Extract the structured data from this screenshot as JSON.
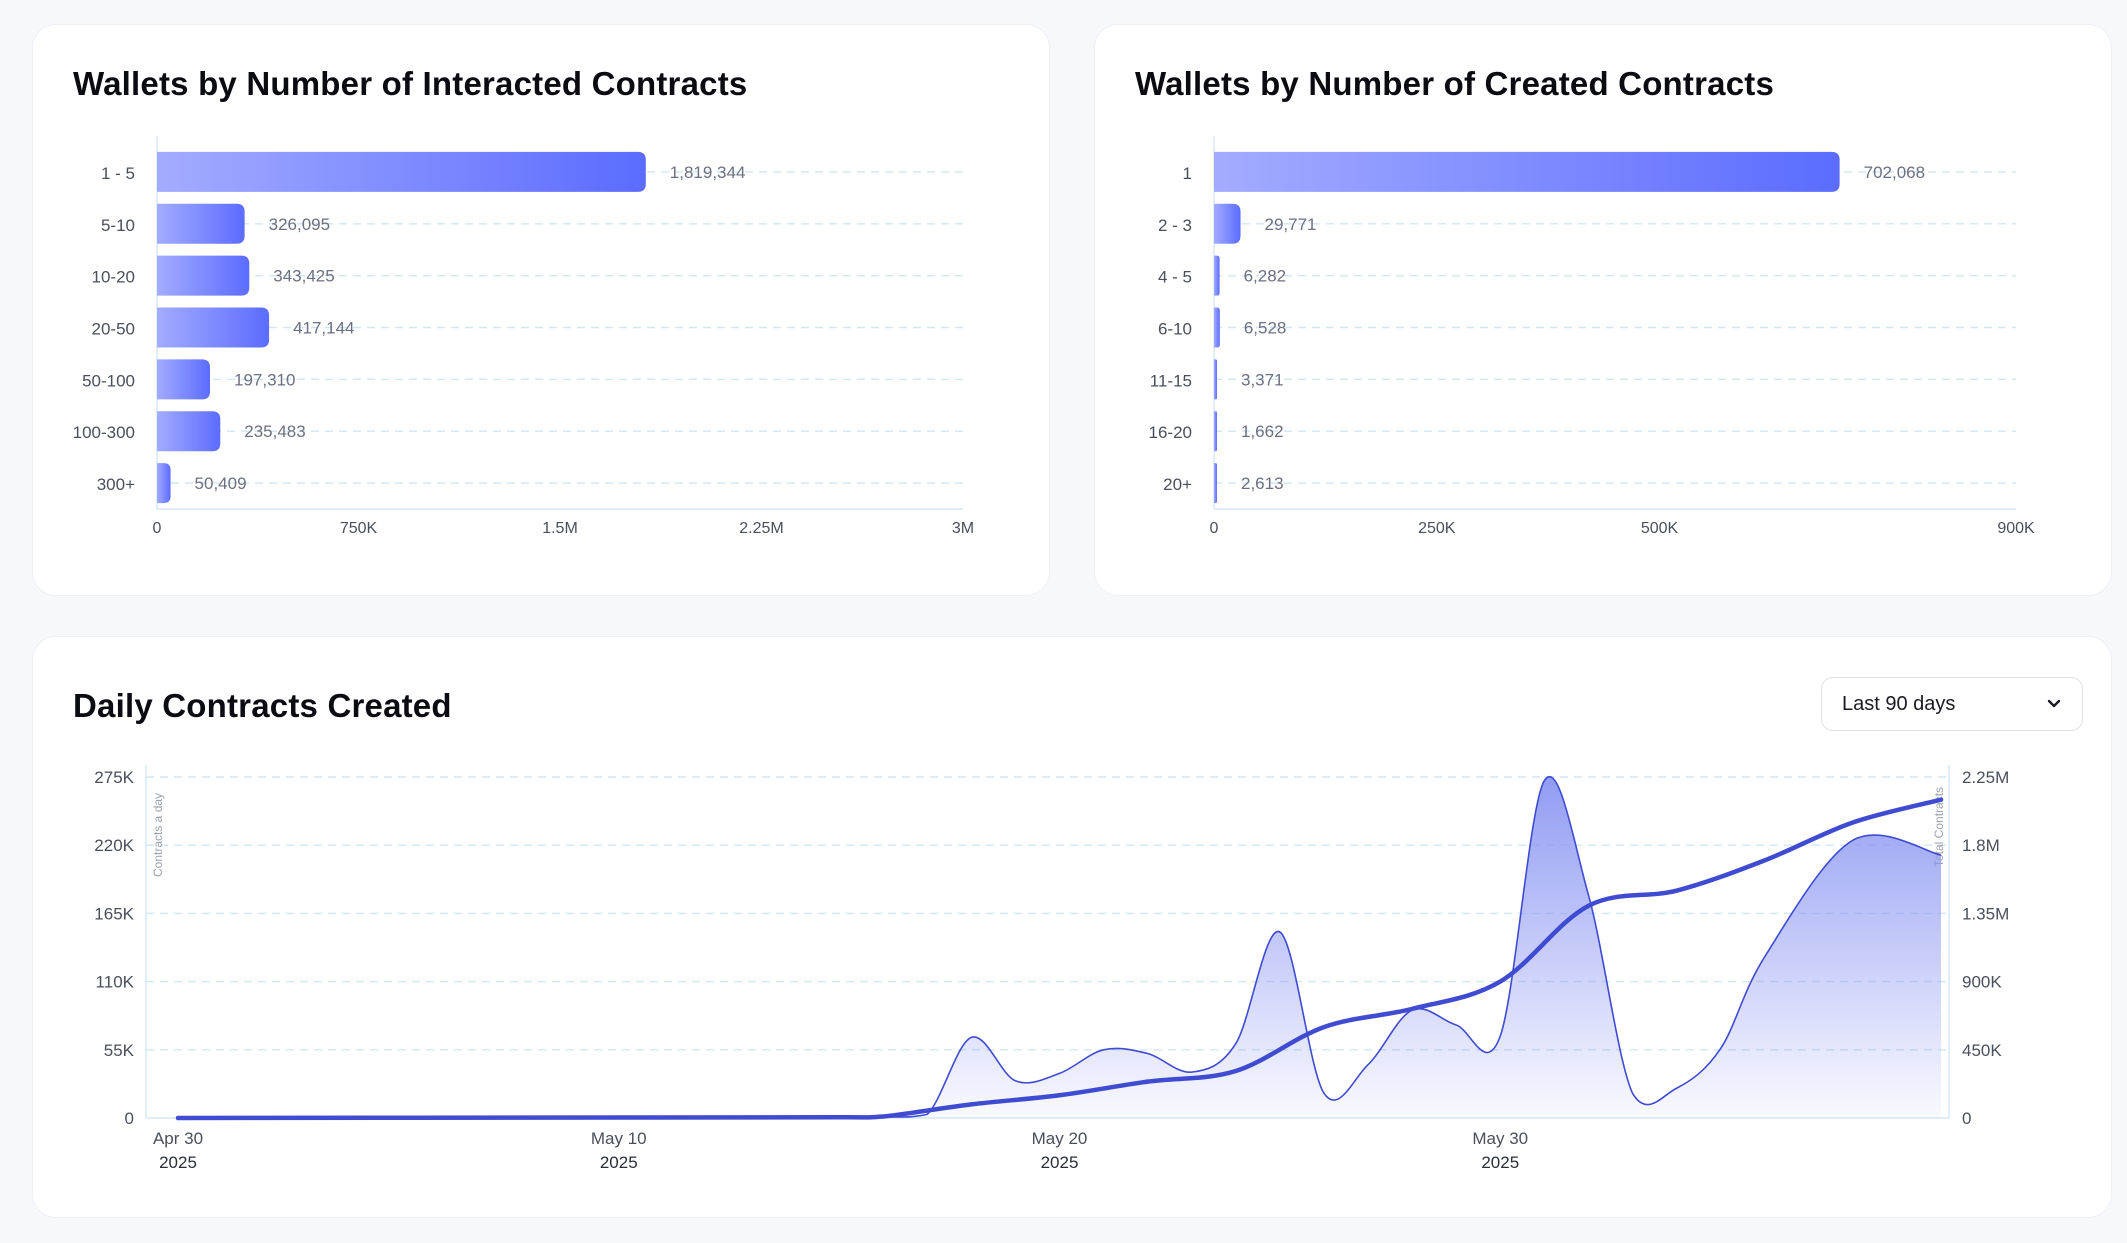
{
  "dashboard": {
    "interacted_title": "Wallets by Number of Interacted Contracts",
    "created_title": "Wallets by Number of Created Contracts",
    "daily_title": "Daily Contracts Created",
    "range_selector": {
      "selected": "Last 90 days",
      "icon": "chevron-down-icon"
    }
  },
  "colors": {
    "bar_start": "#a3acff",
    "bar_end": "#5b6cff",
    "line": "#3f4bd1",
    "area_top": "#8c97f2",
    "grid": "#cfe6f5",
    "axis": "#d6e9f6",
    "tick_text": "#4a4f5c",
    "value_text": "#6b7080"
  },
  "chart_data": [
    {
      "id": "interacted",
      "type": "bar",
      "orientation": "horizontal",
      "title": "Wallets by Number of Interacted Contracts",
      "categories": [
        "1 - 5",
        "5-10",
        "10-20",
        "20-50",
        "50-100",
        "100-300",
        "300+"
      ],
      "values": [
        1819344,
        326095,
        343425,
        417144,
        197310,
        235483,
        50409
      ],
      "value_labels": [
        "1,819,344",
        "326,095",
        "343,425",
        "417,144",
        "197,310",
        "235,483",
        "50,409"
      ],
      "xlim": [
        0,
        3000000
      ],
      "x_ticks": [
        0,
        750000,
        1500000,
        2250000,
        3000000
      ],
      "x_tick_labels": [
        "0",
        "750K",
        "1.5M",
        "2.25M",
        "3M"
      ],
      "grid": true,
      "legend": "none"
    },
    {
      "id": "created",
      "type": "bar",
      "orientation": "horizontal",
      "title": "Wallets by Number of Created Contracts",
      "categories": [
        "1",
        "2 - 3",
        "4 - 5",
        "6-10",
        "11-15",
        "16-20",
        "20+"
      ],
      "values": [
        702068,
        29771,
        6282,
        6528,
        3371,
        1662,
        2613
      ],
      "value_labels": [
        "702,068",
        "29,771",
        "6,282",
        "6,528",
        "3,371",
        "1,662",
        "2,613"
      ],
      "xlim": [
        0,
        900000
      ],
      "x_ticks": [
        0,
        250000,
        500000,
        900000
      ],
      "x_tick_labels": [
        "0",
        "250K",
        "500K",
        "900K"
      ],
      "grid": true,
      "legend": "none"
    },
    {
      "id": "daily",
      "type": "area",
      "title": "Daily Contracts Created",
      "ylabel": "Contracts a day",
      "y2label": "Total Contracts",
      "x_start": "2025-04-30",
      "x_end": "2025-06-09",
      "x_ticks": [
        {
          "date": "2025-04-30",
          "label": "Apr 30",
          "year": "2025"
        },
        {
          "date": "2025-05-10",
          "label": "May 10",
          "year": "2025"
        },
        {
          "date": "2025-05-20",
          "label": "May 20",
          "year": "2025"
        },
        {
          "date": "2025-05-30",
          "label": "May 30",
          "year": "2025"
        }
      ],
      "ylim": [
        0,
        275000
      ],
      "y_ticks": [
        0,
        55000,
        110000,
        165000,
        220000,
        275000
      ],
      "y_tick_labels": [
        "0",
        "55K",
        "110K",
        "165K",
        "220K",
        "275K"
      ],
      "y2lim": [
        0,
        2250000
      ],
      "y2_ticks": [
        0,
        450000,
        900000,
        1350000,
        1800000,
        2250000
      ],
      "y2_tick_labels": [
        "0",
        "450K",
        "900K",
        "1.35M",
        "1.8M",
        "2.25M"
      ],
      "grid": true,
      "series": [
        {
          "kind": "area",
          "axis": "left",
          "points": [
            [
              "2025-04-30",
              0
            ],
            [
              "2025-05-05",
              0
            ],
            [
              "2025-05-10",
              300
            ],
            [
              "2025-05-15",
              600
            ],
            [
              "2025-05-16",
              700
            ],
            [
              "2025-05-17",
              3000
            ],
            [
              "2025-05-18",
              65000
            ],
            [
              "2025-05-19",
              30000
            ],
            [
              "2025-05-20",
              36000
            ],
            [
              "2025-05-21",
              55000
            ],
            [
              "2025-05-22",
              52000
            ],
            [
              "2025-05-23",
              37000
            ],
            [
              "2025-05-24",
              60000
            ],
            [
              "2025-05-25",
              150000
            ],
            [
              "2025-05-26",
              20000
            ],
            [
              "2025-05-27",
              43000
            ],
            [
              "2025-05-28",
              87000
            ],
            [
              "2025-05-29",
              75000
            ],
            [
              "2025-05-30",
              66000
            ],
            [
              "2025-05-31",
              272000
            ],
            [
              "2025-06-01",
              180000
            ],
            [
              "2025-06-02",
              20000
            ],
            [
              "2025-06-03",
              24000
            ],
            [
              "2025-06-04",
              56000
            ],
            [
              "2025-06-05",
              130000
            ],
            [
              "2025-06-07",
              224000
            ],
            [
              "2025-06-09",
              212000
            ]
          ]
        },
        {
          "kind": "line",
          "axis": "right",
          "points": [
            [
              "2025-04-30",
              0
            ],
            [
              "2025-05-10",
              3000
            ],
            [
              "2025-05-15",
              5000
            ],
            [
              "2025-05-16",
              10000
            ],
            [
              "2025-05-18",
              90000
            ],
            [
              "2025-05-20",
              150000
            ],
            [
              "2025-05-22",
              240000
            ],
            [
              "2025-05-24",
              310000
            ],
            [
              "2025-05-26",
              600000
            ],
            [
              "2025-05-28",
              720000
            ],
            [
              "2025-05-30",
              900000
            ],
            [
              "2025-06-01",
              1400000
            ],
            [
              "2025-06-03",
              1500000
            ],
            [
              "2025-06-05",
              1700000
            ],
            [
              "2025-06-07",
              1950000
            ],
            [
              "2025-06-09",
              2100000
            ]
          ]
        }
      ]
    }
  ]
}
